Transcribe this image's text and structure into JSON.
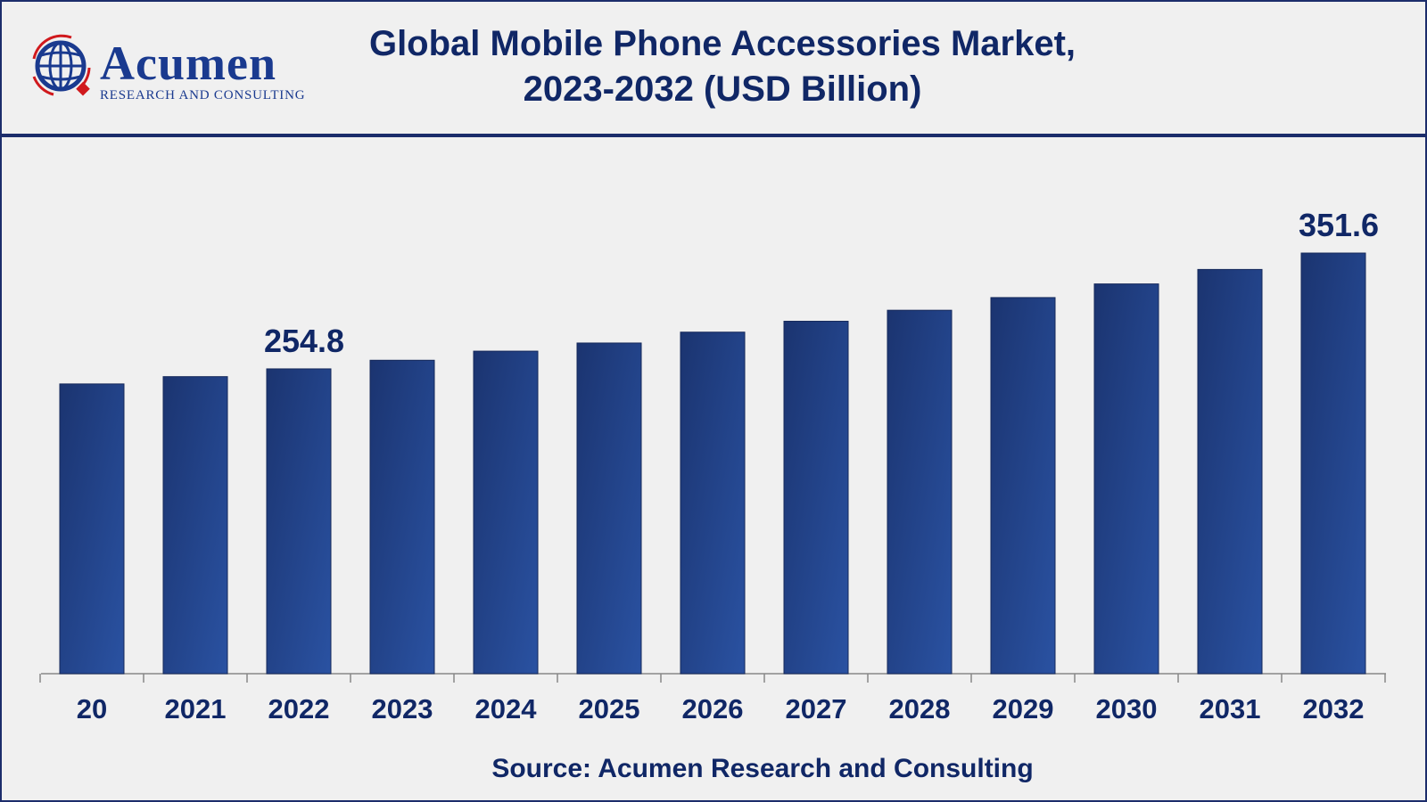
{
  "header": {
    "title_line1": "Global Mobile Phone Accessories Market,",
    "title_line2": "2023-2032 (USD Billion)"
  },
  "logo": {
    "name": "Acumen",
    "tagline": "RESEARCH AND CONSULTING"
  },
  "source": "Source: Acumen Research and Consulting",
  "colors": {
    "bar_dark": "#1b3470",
    "bar_light": "#2a52a2",
    "text": "#102766",
    "logo_red": "#d0191d"
  },
  "chart_data": {
    "type": "bar",
    "title": "Global Mobile Phone Accessories Market, 2023-2032 (USD Billion)",
    "categories": [
      "20",
      "2021",
      "2022",
      "2023",
      "2024",
      "2025",
      "2026",
      "2027",
      "2028",
      "2029",
      "2030",
      "2031",
      "2032"
    ],
    "values": [
      242.2,
      248.3,
      254.8,
      262.0,
      269.6,
      276.4,
      285.5,
      294.6,
      303.8,
      314.4,
      325.8,
      337.9,
      351.6
    ],
    "data_labels": {
      "2": "254.8",
      "12": "351.6"
    },
    "xlabel": "",
    "ylabel": "",
    "ylim": [
      0,
      351.6
    ],
    "grid": false
  }
}
